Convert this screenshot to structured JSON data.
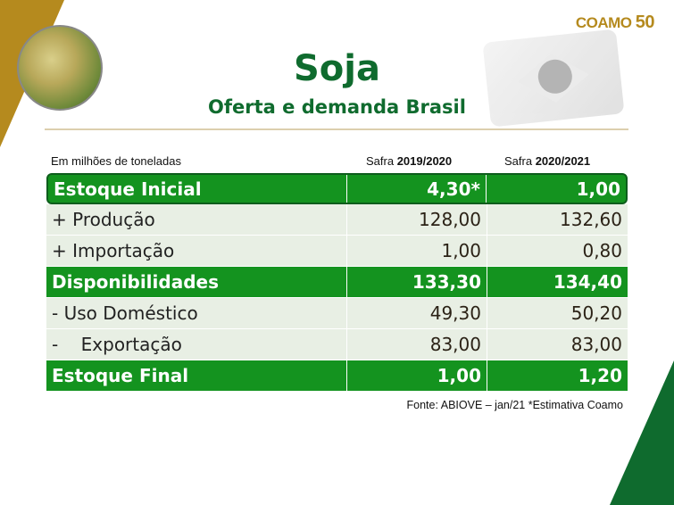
{
  "brand": {
    "logo_text": "COAMO",
    "logo_number": "50",
    "colors": {
      "gold": "#b58a1e",
      "green": "#0f6b2e",
      "row_green": "#14931f"
    }
  },
  "header": {
    "title": "Soja",
    "subtitle": "Oferta e demanda Brasil"
  },
  "table": {
    "unit_label": "Em milhões de toneladas",
    "columns": [
      {
        "prefix": "Safra ",
        "year": "2019/2020"
      },
      {
        "prefix": "Safra ",
        "year": "2020/2021"
      }
    ],
    "rows": [
      {
        "label": "Estoque Inicial",
        "v1": "4,30*",
        "v2": "1,00",
        "highlight": true
      },
      {
        "label": "+ Produção",
        "v1": "128,00",
        "v2": "132,60",
        "highlight": false
      },
      {
        "label": "+ Importação",
        "v1": "1,00",
        "v2": "0,80",
        "highlight": false
      },
      {
        "label": "Disponibilidades",
        "v1": "133,30",
        "v2": "134,40",
        "highlight": true
      },
      {
        "label": "- Uso Doméstico",
        "v1": "49,30",
        "v2": "50,20",
        "highlight": false
      },
      {
        "label": "-    Exportação",
        "v1": "83,00",
        "v2": "83,00",
        "highlight": false
      },
      {
        "label": "Estoque Final",
        "v1": "1,00",
        "v2": "1,20",
        "highlight": true
      }
    ]
  },
  "footer": {
    "source": "Fonte: ABIOVE – jan/21 *Estimativa Coamo"
  }
}
